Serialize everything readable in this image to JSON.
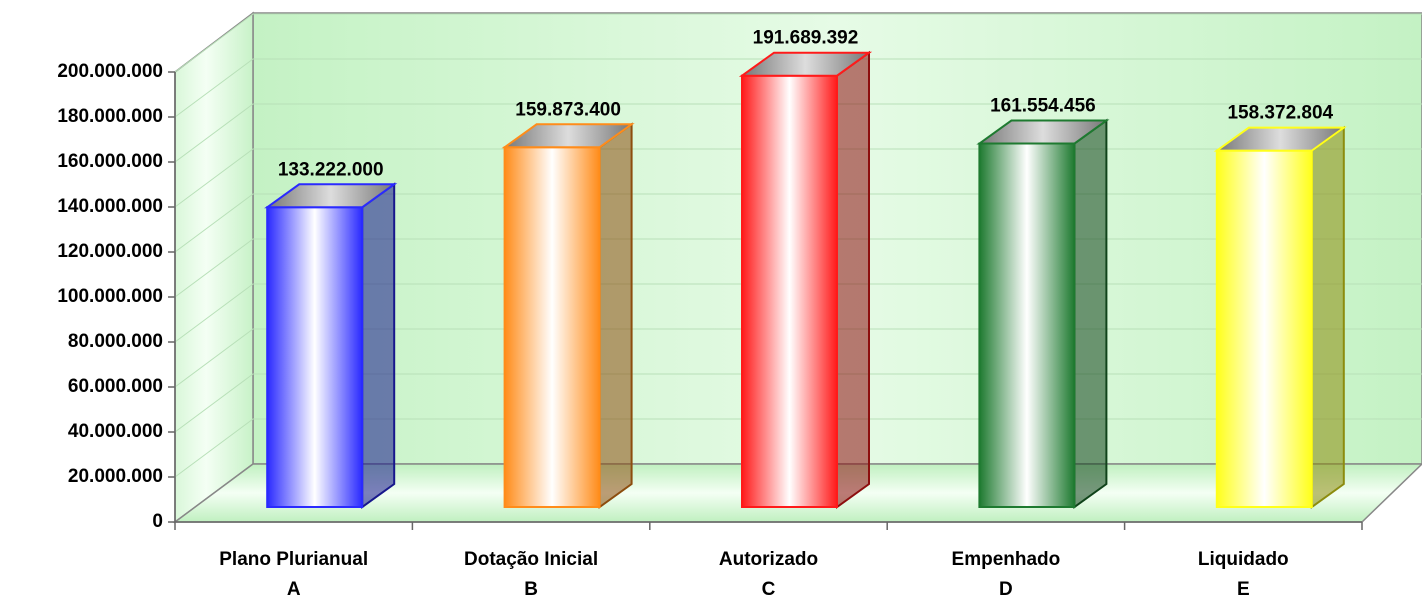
{
  "chart_data": {
    "type": "bar3d",
    "categories": [
      "Plano Plurianual",
      "Dotação Inicial",
      "Autorizado",
      "Empenhado",
      "Liquidado"
    ],
    "category_codes": [
      "A",
      "B",
      "C",
      "D",
      "E"
    ],
    "values": [
      133222000,
      159873400,
      191689392,
      161554456,
      158372804
    ],
    "value_labels": [
      "133.222.000",
      "159.873.400",
      "191.689.392",
      "161.554.456",
      "158.372.804"
    ],
    "colors": [
      "#2a2aff",
      "#ff8c1a",
      "#ff1a1a",
      "#1e7a30",
      "#ffff1a"
    ],
    "ylim": [
      0,
      200000000
    ],
    "yticks": [
      0,
      {
        "value": 20000000,
        "label": "20.000.000"
      },
      {
        "value": 40000000,
        "label": "40.000.000"
      },
      {
        "value": 60000000,
        "label": "60.000.000"
      },
      {
        "value": 80000000,
        "label": "80.000.000"
      },
      {
        "value": 100000000,
        "label": "100.000.000"
      },
      {
        "value": 120000000,
        "label": "120.000.000"
      },
      {
        "value": 140000000,
        "label": "140.000.000"
      },
      {
        "value": 160000000,
        "label": "160.000.000"
      },
      {
        "value": 180000000,
        "label": "180.000.000"
      },
      {
        "value": 200000000,
        "label": "200.000.000"
      }
    ],
    "grid": true
  }
}
